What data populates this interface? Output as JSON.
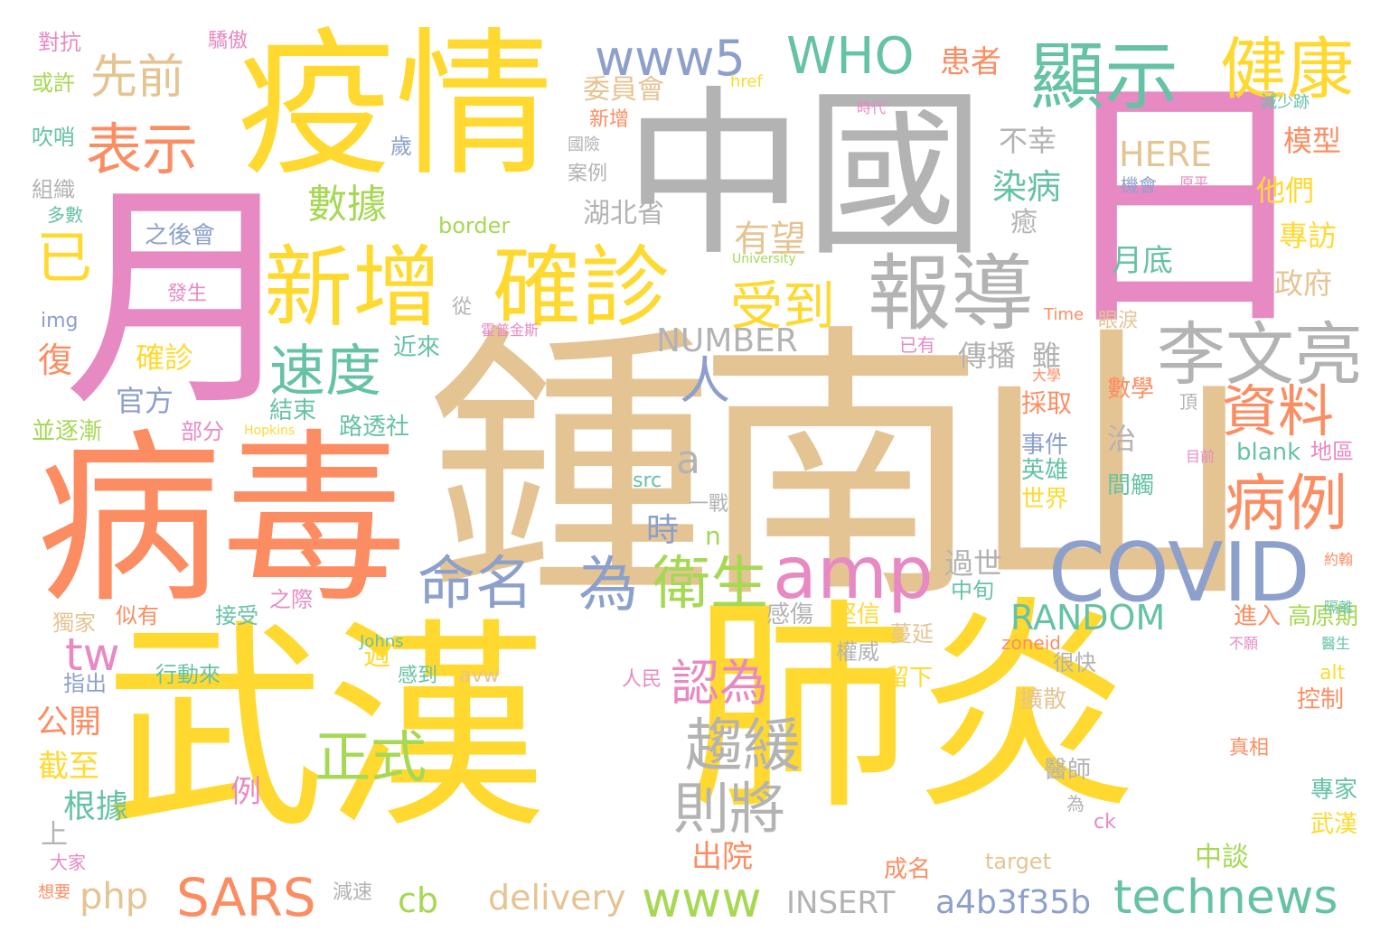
{
  "palette": {
    "yellow": "#ffd92f",
    "orange": "#fc8d62",
    "pink": "#e78ac3",
    "green": "#66c2a5",
    "blue": "#8da0cb",
    "lime": "#a6d854",
    "tan": "#e5c494",
    "gray": "#b3b3b3"
  },
  "words": [
    {
      "text": "武漢",
      "color": "yellow"
    },
    {
      "text": "肺炎",
      "color": "yellow"
    },
    {
      "text": "鍾南山",
      "color": "tan"
    },
    {
      "text": "中國",
      "color": "gray"
    },
    {
      "text": "病毒",
      "color": "orange"
    },
    {
      "text": "疫情",
      "color": "yellow"
    },
    {
      "text": "月",
      "color": "pink"
    },
    {
      "text": "日",
      "color": "pink"
    },
    {
      "text": "新增",
      "color": "yellow"
    },
    {
      "text": "確診",
      "color": "yellow"
    },
    {
      "text": "報導",
      "color": "gray"
    },
    {
      "text": "李文亮",
      "color": "gray"
    },
    {
      "text": "COVID",
      "color": "blue"
    },
    {
      "text": "amp",
      "color": "pink"
    },
    {
      "text": "顯示",
      "color": "green"
    },
    {
      "text": "健康",
      "color": "yellow"
    },
    {
      "text": "WHO",
      "color": "green"
    },
    {
      "text": "www5",
      "color": "blue"
    },
    {
      "text": "表示",
      "color": "orange"
    },
    {
      "text": "先前",
      "color": "tan"
    },
    {
      "text": "命名",
      "color": "blue"
    },
    {
      "text": "為",
      "color": "blue"
    },
    {
      "text": "衛生",
      "color": "lime"
    },
    {
      "text": "速度",
      "color": "green"
    },
    {
      "text": "資料",
      "color": "orange"
    },
    {
      "text": "病例",
      "color": "orange"
    },
    {
      "text": "受到",
      "color": "yellow"
    },
    {
      "text": "趨緩",
      "color": "gray"
    },
    {
      "text": "則將",
      "color": "gray"
    },
    {
      "text": "正式",
      "color": "lime"
    },
    {
      "text": "認為",
      "color": "pink"
    },
    {
      "text": "SARS",
      "color": "orange"
    },
    {
      "text": "www",
      "color": "lime"
    },
    {
      "text": "technews",
      "color": "green"
    },
    {
      "text": "tw",
      "color": "pink"
    },
    {
      "text": "已",
      "color": "yellow"
    },
    {
      "text": "人",
      "color": "blue"
    },
    {
      "text": "數據",
      "color": "lime"
    },
    {
      "text": "有望",
      "color": "tan"
    },
    {
      "text": "染病",
      "color": "green"
    },
    {
      "text": "NUMBER",
      "color": "gray"
    },
    {
      "text": "RANDOM",
      "color": "green"
    },
    {
      "text": "a4b3f35b",
      "color": "blue"
    },
    {
      "text": "delivery",
      "color": "tan"
    },
    {
      "text": "INSERT",
      "color": "gray"
    },
    {
      "text": "php",
      "color": "tan"
    },
    {
      "text": "cb",
      "color": "lime"
    },
    {
      "text": "a",
      "color": "gray"
    },
    {
      "text": "HERE",
      "color": "tan"
    },
    {
      "text": "不幸",
      "color": "gray"
    },
    {
      "text": "患者",
      "color": "orange"
    },
    {
      "text": "委員會",
      "color": "tan"
    },
    {
      "text": "湖北省",
      "color": "gray"
    },
    {
      "text": "模型",
      "color": "orange"
    },
    {
      "text": "他們",
      "color": "yellow"
    },
    {
      "text": "專訪",
      "color": "yellow"
    },
    {
      "text": "政府",
      "color": "tan"
    },
    {
      "text": "月底",
      "color": "green"
    },
    {
      "text": "機會",
      "color": "blue"
    },
    {
      "text": "原平",
      "color": "pink"
    },
    {
      "text": "時代",
      "color": "pink"
    },
    {
      "text": "官方",
      "color": "blue"
    },
    {
      "text": "確診",
      "color": "yellow"
    },
    {
      "text": "復",
      "color": "orange"
    },
    {
      "text": "結束",
      "color": "green"
    },
    {
      "text": "路透社",
      "color": "green"
    },
    {
      "text": "近來",
      "color": "green"
    },
    {
      "text": "傳播",
      "color": "gray"
    },
    {
      "text": "雖",
      "color": "gray"
    },
    {
      "text": "採取",
      "color": "orange"
    },
    {
      "text": "數學",
      "color": "orange"
    },
    {
      "text": "事件",
      "color": "blue"
    },
    {
      "text": "英雄",
      "color": "green"
    },
    {
      "text": "世界",
      "color": "yellow"
    },
    {
      "text": "間觸",
      "color": "green"
    },
    {
      "text": "治",
      "color": "gray"
    },
    {
      "text": "blank",
      "color": "green"
    },
    {
      "text": "地區",
      "color": "pink"
    },
    {
      "text": "過世",
      "color": "gray"
    },
    {
      "text": "中旬",
      "color": "green"
    },
    {
      "text": "感傷",
      "color": "gray"
    },
    {
      "text": "堅信",
      "color": "yellow"
    },
    {
      "text": "進入",
      "color": "orange"
    },
    {
      "text": "高原期",
      "color": "lime"
    },
    {
      "text": "時",
      "color": "blue"
    },
    {
      "text": "n",
      "color": "lime"
    },
    {
      "text": "一戰",
      "color": "gray"
    },
    {
      "text": "src",
      "color": "green"
    },
    {
      "text": "權威",
      "color": "gray"
    },
    {
      "text": "蔓延",
      "color": "tan"
    },
    {
      "text": "zoneid",
      "color": "orange"
    },
    {
      "text": "週",
      "color": "yellow"
    },
    {
      "text": "感到",
      "color": "green"
    },
    {
      "text": "avw",
      "color": "tan"
    },
    {
      "text": "很快",
      "color": "gray"
    },
    {
      "text": "擴散",
      "color": "tan"
    },
    {
      "text": "控制",
      "color": "orange"
    },
    {
      "text": "公開",
      "color": "orange"
    },
    {
      "text": "截至",
      "color": "yellow"
    },
    {
      "text": "根據",
      "color": "green"
    },
    {
      "text": "例",
      "color": "pink"
    },
    {
      "text": "出院",
      "color": "orange"
    },
    {
      "text": "成名",
      "color": "orange"
    },
    {
      "text": "target",
      "color": "tan"
    },
    {
      "text": "中談",
      "color": "lime"
    },
    {
      "text": "武漢",
      "color": "yellow"
    },
    {
      "text": "專家",
      "color": "green"
    },
    {
      "text": "醫師",
      "color": "gray"
    },
    {
      "text": "真相",
      "color": "orange"
    },
    {
      "text": "留下",
      "color": "yellow"
    },
    {
      "text": "行動來",
      "color": "green"
    },
    {
      "text": "指出",
      "color": "blue"
    },
    {
      "text": "接受",
      "color": "green"
    },
    {
      "text": "似有",
      "color": "orange"
    },
    {
      "text": "獨家",
      "color": "tan"
    },
    {
      "text": "之際",
      "color": "pink"
    },
    {
      "text": "對抗",
      "color": "pink"
    },
    {
      "text": "驕傲",
      "color": "pink"
    },
    {
      "text": "或許",
      "color": "lime"
    },
    {
      "text": "吹哨",
      "color": "green"
    },
    {
      "text": "組織",
      "color": "gray"
    },
    {
      "text": "多數",
      "color": "green"
    },
    {
      "text": "之後會",
      "color": "blue"
    },
    {
      "text": "發生",
      "color": "pink"
    },
    {
      "text": "border",
      "color": "lime"
    },
    {
      "text": "img",
      "color": "blue"
    },
    {
      "text": "並逐漸",
      "color": "lime"
    },
    {
      "text": "部分",
      "color": "pink"
    },
    {
      "text": "上",
      "color": "gray"
    },
    {
      "text": "大家",
      "color": "pink"
    },
    {
      "text": "減速",
      "color": "gray"
    },
    {
      "text": "想要",
      "color": "orange"
    },
    {
      "text": "眼淚",
      "color": "tan"
    },
    {
      "text": "已有",
      "color": "pink"
    },
    {
      "text": "href",
      "color": "yellow"
    },
    {
      "text": "癒",
      "color": "gray"
    },
    {
      "text": "從",
      "color": "gray"
    },
    {
      "text": "新增",
      "color": "orange"
    },
    {
      "text": "國險",
      "color": "gray"
    },
    {
      "text": "案例",
      "color": "gray"
    },
    {
      "text": "歲",
      "color": "blue"
    },
    {
      "text": "alt",
      "color": "yellow"
    },
    {
      "text": "ck",
      "color": "pink"
    },
    {
      "text": "目前",
      "color": "pink"
    },
    {
      "text": "頂",
      "color": "gray"
    },
    {
      "text": "減少跡",
      "color": "green"
    },
    {
      "text": "University",
      "color": "lime"
    },
    {
      "text": "Johns",
      "color": "green"
    },
    {
      "text": "Hopkins",
      "color": "yellow"
    },
    {
      "text": "Time",
      "color": "orange"
    },
    {
      "text": "霍普金斯",
      "color": "pink"
    },
    {
      "text": "人民",
      "color": "pink"
    },
    {
      "text": "為",
      "color": "gray"
    },
    {
      "text": "醫生",
      "color": "green"
    },
    {
      "text": "不願",
      "color": "pink"
    },
    {
      "text": "隔離",
      "color": "green"
    },
    {
      "text": "約翰",
      "color": "orange"
    },
    {
      "text": "大學",
      "color": "orange"
    }
  ]
}
